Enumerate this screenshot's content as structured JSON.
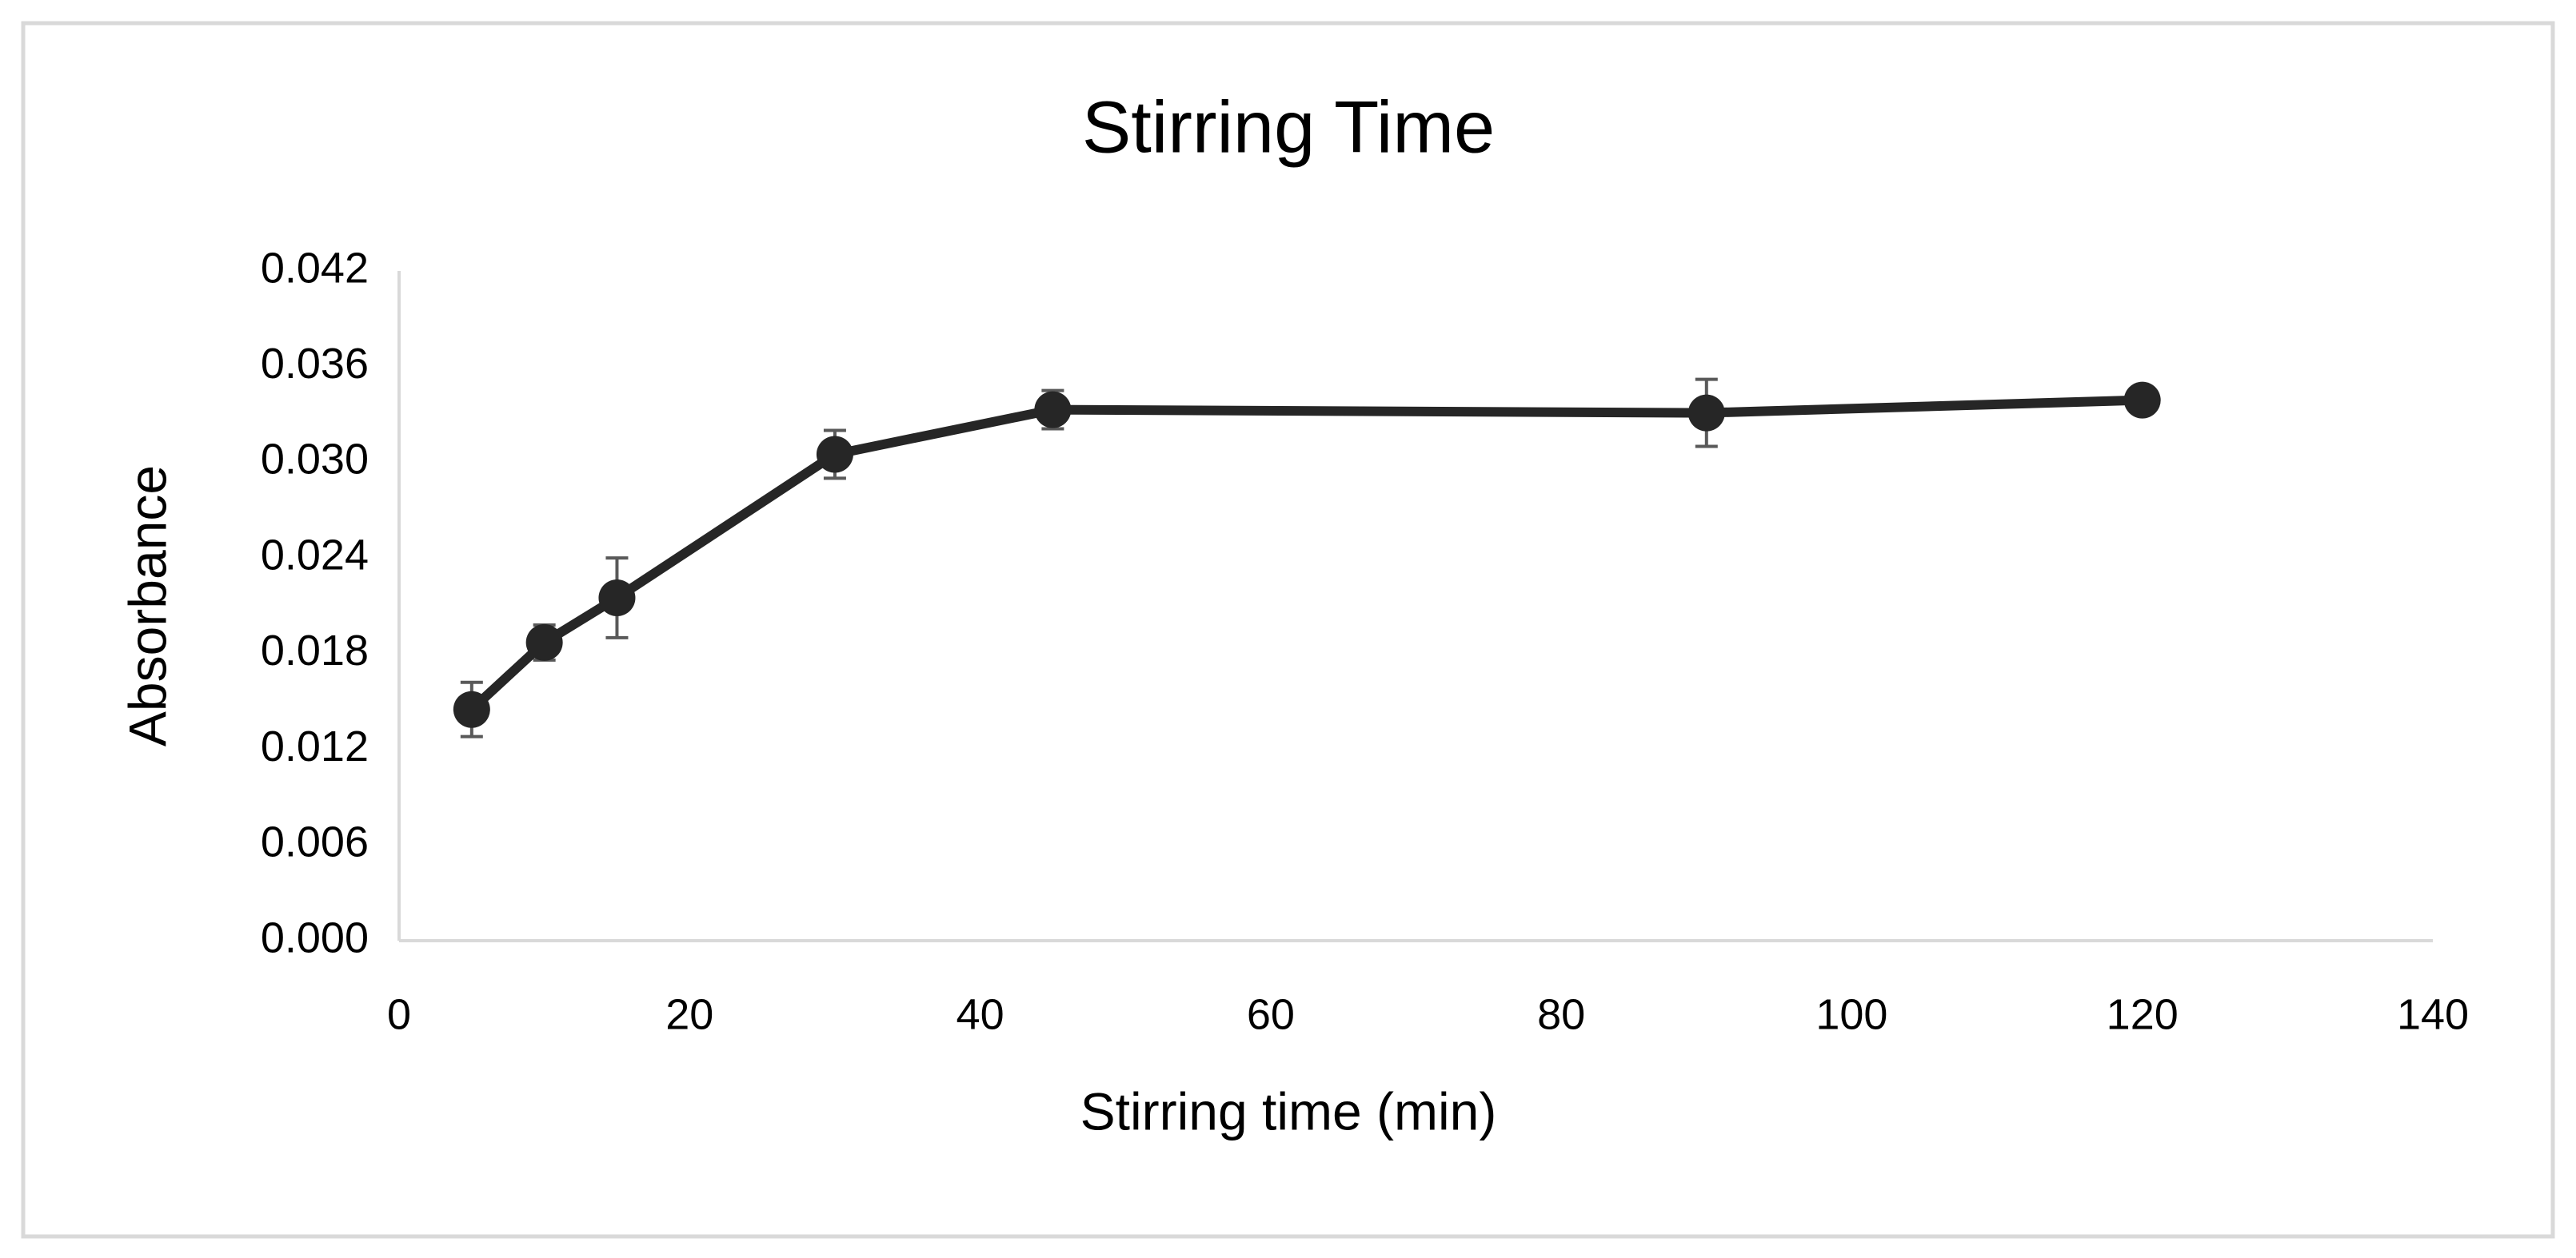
{
  "chart_data": {
    "type": "line",
    "title": "Stirring Time",
    "x_label": "Stirring time (min)",
    "y_label": "Absorbance",
    "x": [
      5,
      10,
      15,
      30,
      45,
      90,
      120
    ],
    "values": [
      0.0145,
      0.0187,
      0.0215,
      0.0305,
      0.0333,
      0.0331,
      0.0339
    ],
    "errors": [
      0.0017,
      0.0011,
      0.0025,
      0.0015,
      0.0012,
      0.0021,
      0.0003
    ],
    "color": "#262626",
    "error_color": "#595959",
    "xlim": [
      0,
      140
    ],
    "xticks": [
      0,
      20,
      40,
      60,
      80,
      100,
      120,
      140
    ],
    "ylim": [
      0,
      0.042
    ],
    "yticks": [
      {
        "value": 0,
        "label": "0.000"
      },
      {
        "value": 0.006,
        "label": "0.006"
      },
      {
        "value": 0.012,
        "label": "0.012"
      },
      {
        "value": 0.018,
        "label": "0.018"
      },
      {
        "value": 0.024,
        "label": "0.024"
      },
      {
        "value": 0.03,
        "label": "0.030"
      },
      {
        "value": 0.036,
        "label": "0.036"
      },
      {
        "value": 0.042,
        "label": "0.042"
      }
    ],
    "grid": false
  }
}
